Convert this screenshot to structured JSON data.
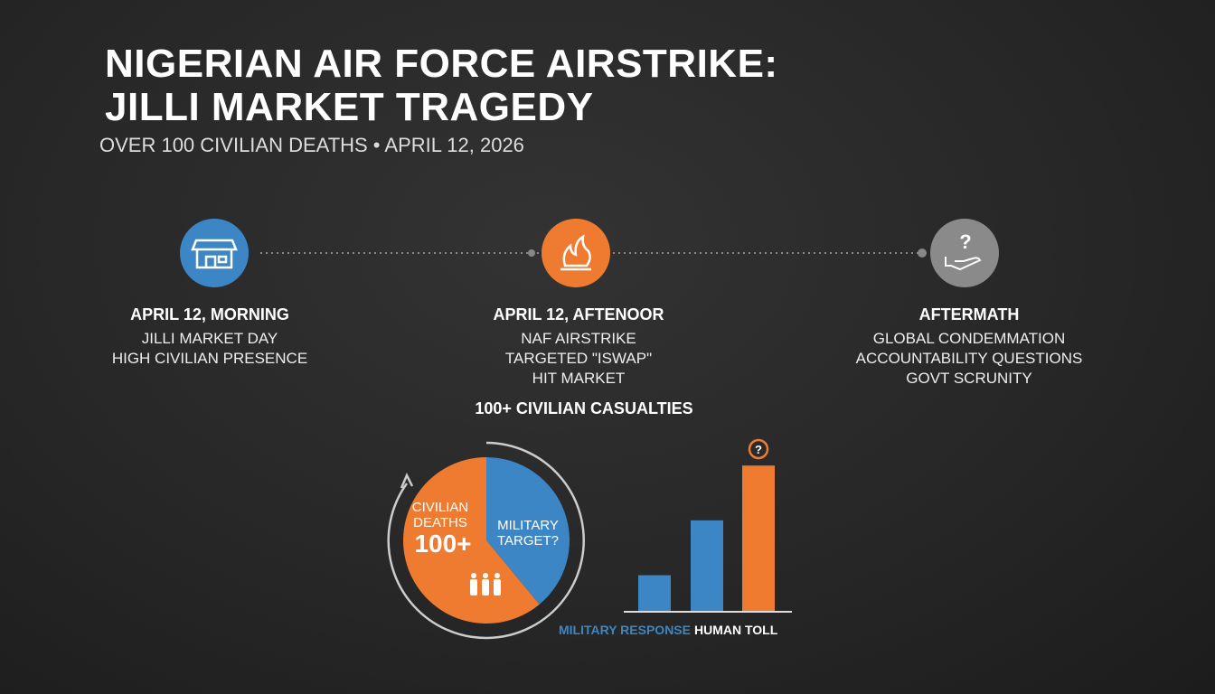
{
  "header": {
    "title_lines": [
      "NIGERIAN AIR FORCE AIRSTRIKE:",
      "JILLI MARKET TRAGEDY"
    ],
    "subtitle": "OVER 100 CIVILIAN DEATHS • APRIL 12, 2026"
  },
  "timeline": [
    {
      "heading": "APRIL 12, MORNING",
      "lines": [
        "JILLI MARKET DAY",
        "HIGH CIVILIAN PRESENCE"
      ]
    },
    {
      "heading": "APRIL 12, AFTENOOR",
      "lines": [
        "NAF AIRSTRIKE",
        "TARGETED \"ISWAP\"",
        "HIT MARKET"
      ]
    },
    {
      "heading": "AFTERMATH",
      "lines": [
        "GLOBAL CONDEMMATION",
        "ACCOUNTABILITY QUESTIONS",
        "GOVT SCRUNITY"
      ]
    }
  ],
  "chart_data": [
    {
      "type": "pie",
      "title": "100+ CIVILIAN CASUALTIES",
      "categories": [
        "MILITARY TARGET?",
        "CIVILIAN DEATHS"
      ],
      "values": [
        39,
        61
      ],
      "colors": [
        "#3d86c6",
        "#ee7b30"
      ],
      "annotations": [
        null,
        "100+"
      ]
    },
    {
      "type": "bar",
      "categories": [
        null,
        null,
        null
      ],
      "series": [
        {
          "name": "MILITARY RESPONSE",
          "color": "#3d86c6",
          "values": [
            1,
            2.5,
            null
          ]
        },
        {
          "name": "HUMAN TOLL",
          "color": "#ee7b30",
          "values": [
            null,
            null,
            4
          ]
        }
      ],
      "ylim": [
        0,
        4.4
      ]
    }
  ]
}
